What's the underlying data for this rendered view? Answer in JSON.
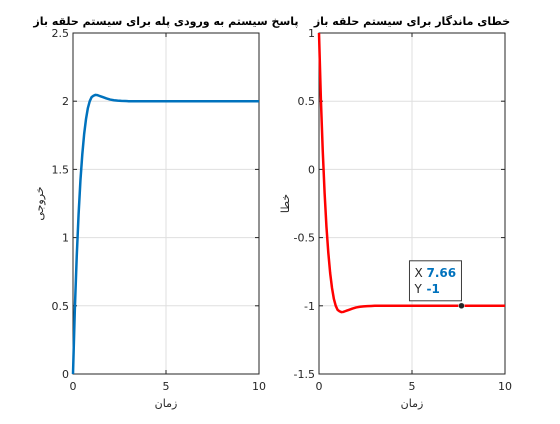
{
  "chart_data": [
    {
      "type": "line",
      "title": "پاسخ سیستم به ورودی  پله برای سیستم حلقه باز",
      "xlabel": "زمان",
      "ylabel": "خروجی",
      "xlim": [
        0,
        10
      ],
      "ylim": [
        0,
        2.5
      ],
      "xticks": [
        0,
        5,
        10
      ],
      "yticks": [
        0,
        0.5,
        1,
        1.5,
        2,
        2.5
      ],
      "xtick_labels": [
        "0",
        "5",
        "10"
      ],
      "ytick_labels": [
        "0",
        "0.5",
        "1",
        "1.5",
        "2",
        "2.5"
      ],
      "grid": true,
      "series": [
        {
          "color": "#0072BD",
          "x": [
            0,
            0.1,
            0.2,
            0.3,
            0.4,
            0.5,
            0.6,
            0.7,
            0.8,
            0.9,
            1.0,
            1.1,
            1.2,
            1.3,
            1.4,
            1.5,
            1.6,
            1.8,
            2.0,
            2.2,
            2.4,
            2.6,
            2.8,
            3.0,
            3.5,
            4.0,
            5.0,
            6.0,
            7.0,
            8.0,
            9.0,
            10.0
          ],
          "y": [
            0,
            0.48,
            0.86,
            1.17,
            1.42,
            1.61,
            1.76,
            1.87,
            1.95,
            2.0,
            2.03,
            2.04,
            2.046,
            2.045,
            2.04,
            2.035,
            2.03,
            2.02,
            2.012,
            2.007,
            2.004,
            2.002,
            2.001,
            2.0,
            2.0,
            2.0,
            2.0,
            2.0,
            2.0,
            2.0,
            2.0,
            2.0
          ]
        }
      ]
    },
    {
      "type": "line",
      "title": "خطای  ماندگار برای سیستم حلقه باز",
      "xlabel": "زمان",
      "ylabel": "خطا",
      "xlim": [
        0,
        10
      ],
      "ylim": [
        -1.5,
        1
      ],
      "xticks": [
        0,
        5,
        10
      ],
      "yticks": [
        -1.5,
        -1,
        -0.5,
        0,
        0.5,
        1
      ],
      "xtick_labels": [
        "0",
        "5",
        "10"
      ],
      "ytick_labels": [
        "-1.5",
        "-1",
        "-0.5",
        "0",
        "0.5",
        "1"
      ],
      "grid": true,
      "series": [
        {
          "color": "#FF0000",
          "x": [
            0,
            0.1,
            0.2,
            0.3,
            0.4,
            0.5,
            0.6,
            0.7,
            0.8,
            0.9,
            1.0,
            1.1,
            1.2,
            1.3,
            1.4,
            1.5,
            1.6,
            1.8,
            2.0,
            2.2,
            2.4,
            2.6,
            2.8,
            3.0,
            3.5,
            4.0,
            5.0,
            6.0,
            7.0,
            8.0,
            9.0,
            10.0
          ],
          "y": [
            1,
            0.52,
            0.14,
            -0.17,
            -0.42,
            -0.61,
            -0.76,
            -0.87,
            -0.95,
            -1.0,
            -1.03,
            -1.04,
            -1.046,
            -1.045,
            -1.04,
            -1.035,
            -1.03,
            -1.02,
            -1.012,
            -1.007,
            -1.004,
            -1.002,
            -1.001,
            -1.0,
            -1.0,
            -1.0,
            -1.0,
            -1.0,
            -1.0,
            -1.0,
            -1.0,
            -1.0
          ]
        }
      ],
      "datatip": {
        "x": 7.66,
        "y": -1,
        "x_label": "X",
        "y_label": "Y",
        "x_text": "7.66",
        "y_text": "-1"
      }
    }
  ],
  "colors": {
    "axis": "#262626",
    "grid": "#DFDFDF",
    "datatip_value": "#0072BD"
  }
}
